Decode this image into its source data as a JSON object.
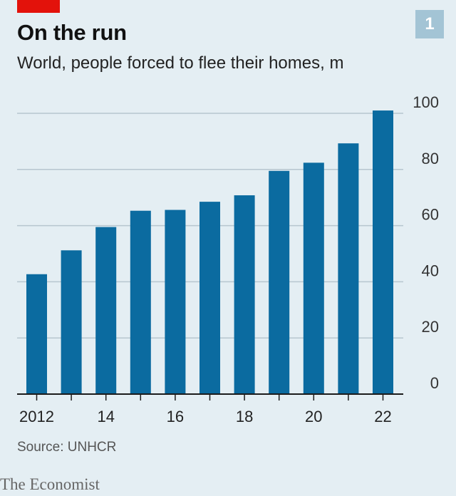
{
  "header": {
    "title": "On the run",
    "subtitle": "World, people forced to flee their homes, m",
    "chart_number": "1"
  },
  "footer": {
    "source": "Source: UNHCR",
    "brand": "The Economist"
  },
  "colors": {
    "bar": "#0b6ba0",
    "accent": "#e3120b",
    "background": "#e4eef3",
    "grid": "#b7c6cf"
  },
  "chart_data": {
    "type": "bar",
    "title": "On the run",
    "subtitle": "World, people forced to flee their homes, m",
    "categories": [
      "2012",
      "2013",
      "2014",
      "2015",
      "2016",
      "2017",
      "2018",
      "2019",
      "2020",
      "2021",
      "2022"
    ],
    "x_tick_labels": [
      "2012",
      "",
      "14",
      "",
      "16",
      "",
      "18",
      "",
      "20",
      "",
      "22"
    ],
    "values": [
      42.7,
      51.2,
      59.5,
      65.3,
      65.6,
      68.5,
      70.8,
      79.5,
      82.4,
      89.3,
      101.0
    ],
    "ylim": [
      0,
      100
    ],
    "y_ticks": [
      0,
      20,
      40,
      60,
      80,
      100
    ],
    "y_axis_position": "right",
    "unit": "m",
    "grid": true
  }
}
